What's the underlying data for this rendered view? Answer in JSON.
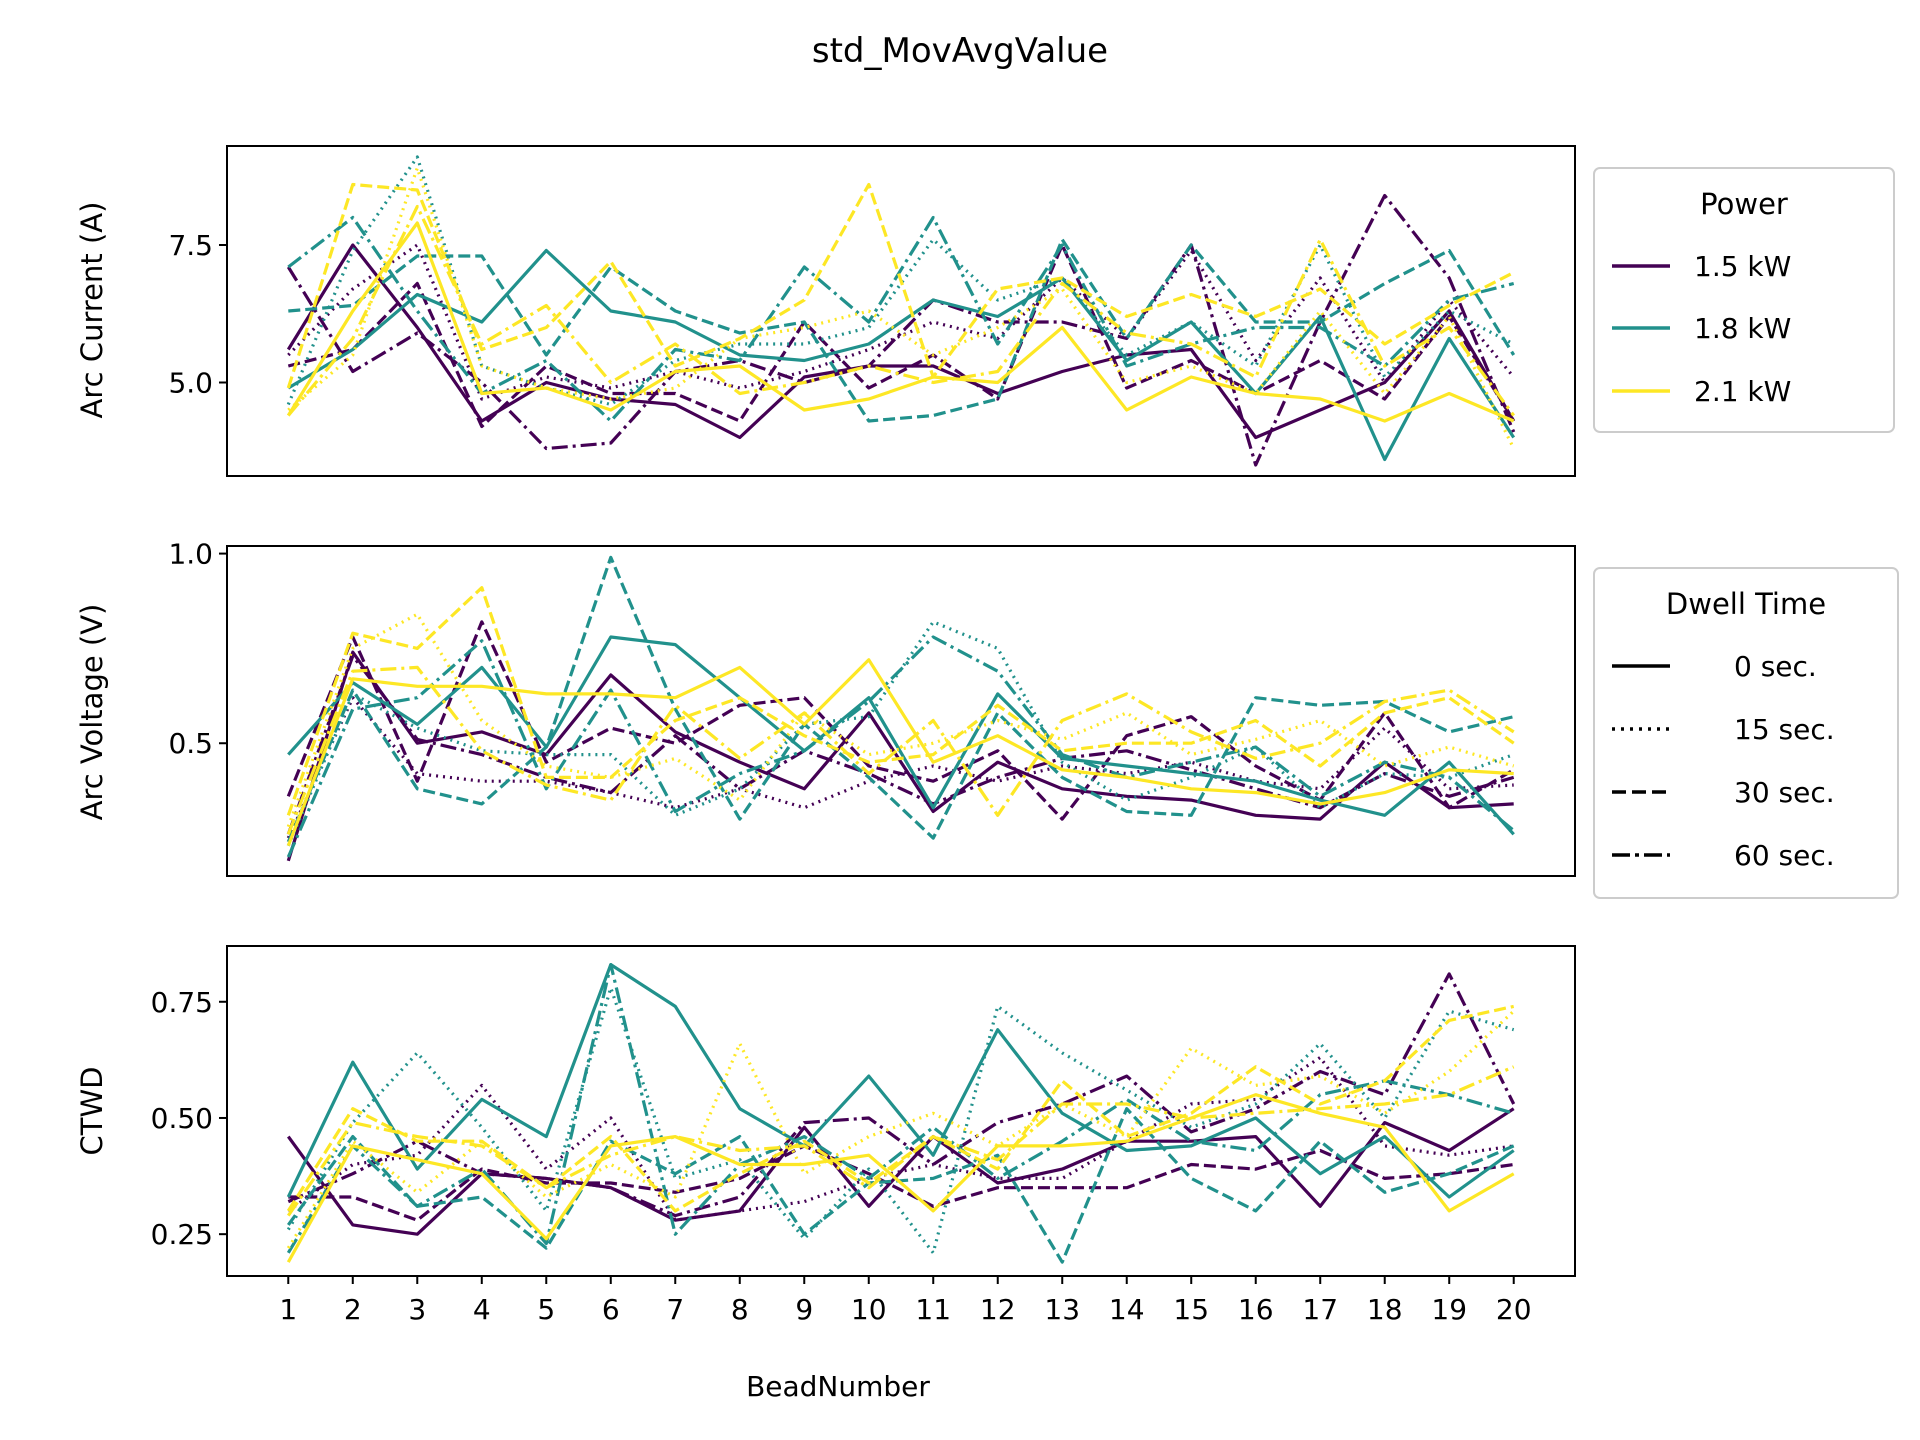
{
  "title": "std_MovAvgValue",
  "xlabel": "BeadNumber",
  "legend_power": {
    "title": "Power",
    "entries": [
      {
        "label": "1.5 kW",
        "color": "#440154"
      },
      {
        "label": "1.8 kW",
        "color": "#21918c"
      },
      {
        "label": "2.1 kW",
        "color": "#fde725"
      }
    ]
  },
  "legend_dwell": {
    "title": "Dwell Time",
    "entries": [
      {
        "label": "0 sec.",
        "style": "solid"
      },
      {
        "label": "15 sec.",
        "style": "dotted"
      },
      {
        "label": "30 sec.",
        "style": "dashed"
      },
      {
        "label": "60 sec.",
        "style": "dashdot"
      }
    ]
  },
  "chart_data": [
    {
      "type": "line",
      "ylabel": "Arc Current (A)",
      "yticks": [
        5.0,
        7.5
      ],
      "ytick_labels": [
        "5.0",
        "7.5"
      ],
      "ylim": [
        3.3,
        9.3
      ],
      "x": [
        1,
        2,
        3,
        4,
        5,
        6,
        7,
        8,
        9,
        10,
        11,
        12,
        13,
        14,
        15,
        16,
        17,
        18,
        19,
        20
      ],
      "series": [
        {
          "power": "1.5 kW",
          "dwell": "0 sec.",
          "values": [
            5.6,
            7.5,
            6.0,
            4.3,
            5.0,
            4.7,
            4.6,
            4.0,
            5.1,
            5.3,
            5.3,
            4.8,
            5.2,
            5.5,
            5.6,
            4.0,
            4.5,
            5.0,
            6.3,
            4.3
          ]
        },
        {
          "power": "1.5 kW",
          "dwell": "15 sec.",
          "values": [
            5.5,
            6.7,
            7.5,
            4.7,
            5.1,
            4.9,
            5.2,
            4.9,
            5.2,
            5.6,
            6.1,
            5.8,
            6.9,
            5.8,
            7.4,
            5.4,
            6.9,
            5.0,
            6.5,
            5.1
          ]
        },
        {
          "power": "1.5 kW",
          "dwell": "30 sec.",
          "values": [
            5.3,
            5.6,
            6.8,
            4.2,
            5.3,
            4.8,
            4.8,
            4.3,
            6.1,
            4.9,
            5.5,
            4.7,
            7.5,
            4.9,
            5.4,
            4.8,
            5.4,
            4.7,
            6.2,
            4.3
          ]
        },
        {
          "power": "1.5 kW",
          "dwell": "60 sec.",
          "values": [
            7.1,
            5.2,
            5.9,
            5.0,
            3.8,
            3.9,
            5.2,
            5.4,
            5.0,
            5.3,
            6.5,
            6.1,
            6.1,
            5.8,
            7.5,
            3.5,
            6.1,
            8.4,
            6.9,
            4.1
          ]
        },
        {
          "power": "1.8 kW",
          "dwell": "0 sec.",
          "values": [
            4.9,
            5.6,
            6.6,
            6.1,
            7.4,
            6.3,
            6.1,
            5.5,
            5.4,
            5.7,
            6.5,
            6.2,
            6.9,
            5.4,
            6.1,
            4.8,
            6.2,
            3.6,
            5.8,
            4.0
          ]
        },
        {
          "power": "1.8 kW",
          "dwell": "15 sec.",
          "values": [
            4.6,
            7.4,
            9.1,
            5.3,
            4.9,
            4.6,
            5.4,
            5.7,
            5.7,
            6.0,
            7.6,
            6.5,
            6.9,
            5.5,
            6.1,
            5.3,
            7.5,
            5.1,
            6.3,
            5.7
          ]
        },
        {
          "power": "1.8 kW",
          "dwell": "30 sec.",
          "values": [
            6.3,
            6.4,
            7.3,
            7.3,
            5.5,
            7.1,
            6.3,
            5.9,
            6.1,
            4.3,
            4.4,
            4.7,
            7.6,
            5.8,
            7.5,
            6.1,
            6.1,
            6.8,
            7.4,
            5.5
          ]
        },
        {
          "power": "1.8 kW",
          "dwell": "60 sec.",
          "values": [
            7.1,
            8.0,
            6.3,
            4.8,
            5.4,
            4.3,
            5.6,
            5.4,
            7.1,
            6.1,
            8.0,
            5.7,
            7.5,
            5.3,
            5.7,
            6.0,
            6.0,
            5.3,
            6.5,
            6.8
          ]
        },
        {
          "power": "2.1 kW",
          "dwell": "0 sec.",
          "values": [
            4.4,
            6.3,
            7.9,
            4.8,
            4.9,
            4.5,
            5.2,
            5.3,
            4.5,
            4.7,
            5.1,
            5.0,
            6.0,
            4.5,
            5.1,
            4.8,
            4.7,
            4.3,
            4.8,
            4.3
          ]
        },
        {
          "power": "2.1 kW",
          "dwell": "15 sec.",
          "values": [
            4.5,
            5.5,
            8.9,
            5.3,
            4.9,
            4.7,
            4.9,
            5.8,
            6.0,
            6.3,
            5.5,
            6.0,
            6.7,
            5.0,
            5.3,
            4.8,
            6.3,
            4.8,
            6.2,
            3.8
          ]
        },
        {
          "power": "2.1 kW",
          "dwell": "30 sec.",
          "values": [
            4.9,
            8.6,
            8.5,
            5.6,
            6.0,
            7.2,
            5.3,
            5.8,
            6.5,
            8.6,
            5.1,
            6.7,
            6.9,
            6.2,
            6.6,
            6.2,
            6.7,
            5.7,
            6.4,
            7.0
          ]
        },
        {
          "power": "2.1 kW",
          "dwell": "60 sec.",
          "values": [
            4.4,
            5.8,
            8.2,
            5.7,
            6.4,
            5.0,
            5.7,
            4.8,
            5.0,
            5.3,
            5.0,
            5.2,
            6.8,
            5.9,
            5.7,
            5.1,
            7.6,
            5.3,
            6.0,
            4.4
          ]
        }
      ]
    },
    {
      "type": "line",
      "ylabel": "Arc Voltage (V)",
      "yticks": [
        0.5,
        1.0
      ],
      "ytick_labels": [
        "0.5",
        "1.0"
      ],
      "ylim": [
        0.15,
        1.02
      ],
      "x": [
        1,
        2,
        3,
        4,
        5,
        6,
        7,
        8,
        9,
        10,
        11,
        12,
        13,
        14,
        15,
        16,
        17,
        18,
        19,
        20
      ],
      "series": [
        {
          "power": "1.5 kW",
          "dwell": "0 sec.",
          "values": [
            0.19,
            0.74,
            0.5,
            0.53,
            0.47,
            0.68,
            0.53,
            0.45,
            0.38,
            0.58,
            0.32,
            0.45,
            0.38,
            0.36,
            0.35,
            0.31,
            0.3,
            0.45,
            0.33,
            0.34
          ]
        },
        {
          "power": "1.5 kW",
          "dwell": "15 sec.",
          "values": [
            0.25,
            0.62,
            0.42,
            0.4,
            0.4,
            0.37,
            0.33,
            0.38,
            0.33,
            0.4,
            0.44,
            0.4,
            0.44,
            0.42,
            0.45,
            0.4,
            0.38,
            0.54,
            0.38,
            0.39
          ]
        },
        {
          "power": "1.5 kW",
          "dwell": "30 sec.",
          "values": [
            0.36,
            0.78,
            0.4,
            0.82,
            0.45,
            0.54,
            0.5,
            0.6,
            0.62,
            0.44,
            0.4,
            0.48,
            0.3,
            0.52,
            0.57,
            0.44,
            0.35,
            0.58,
            0.33,
            0.43
          ]
        },
        {
          "power": "1.5 kW",
          "dwell": "60 sec.",
          "values": [
            0.26,
            0.73,
            0.51,
            0.47,
            0.41,
            0.37,
            0.52,
            0.38,
            0.48,
            0.42,
            0.34,
            0.41,
            0.46,
            0.48,
            0.43,
            0.38,
            0.33,
            0.42,
            0.36,
            0.41
          ]
        },
        {
          "power": "1.8 kW",
          "dwell": "0 sec.",
          "values": [
            0.47,
            0.66,
            0.55,
            0.7,
            0.49,
            0.78,
            0.76,
            0.62,
            0.48,
            0.62,
            0.33,
            0.63,
            0.46,
            0.44,
            0.42,
            0.4,
            0.35,
            0.31,
            0.45,
            0.26
          ]
        },
        {
          "power": "1.8 kW",
          "dwell": "15 sec.",
          "values": [
            0.23,
            0.63,
            0.54,
            0.48,
            0.47,
            0.47,
            0.31,
            0.38,
            0.55,
            0.57,
            0.82,
            0.75,
            0.45,
            0.35,
            0.41,
            0.49,
            0.33,
            0.42,
            0.41,
            0.47
          ]
        },
        {
          "power": "1.8 kW",
          "dwell": "30 sec.",
          "values": [
            0.24,
            0.64,
            0.38,
            0.34,
            0.49,
            0.99,
            0.59,
            0.3,
            0.55,
            0.41,
            0.25,
            0.58,
            0.41,
            0.32,
            0.31,
            0.62,
            0.6,
            0.61,
            0.53,
            0.57
          ]
        },
        {
          "power": "1.8 kW",
          "dwell": "60 sec.",
          "values": [
            0.2,
            0.59,
            0.62,
            0.77,
            0.38,
            0.64,
            0.32,
            0.42,
            0.48,
            0.61,
            0.78,
            0.69,
            0.47,
            0.41,
            0.45,
            0.49,
            0.36,
            0.45,
            0.41,
            0.27
          ]
        },
        {
          "power": "2.1 kW",
          "dwell": "0 sec.",
          "values": [
            0.23,
            0.67,
            0.65,
            0.65,
            0.63,
            0.63,
            0.62,
            0.7,
            0.55,
            0.72,
            0.45,
            0.52,
            0.43,
            0.41,
            0.38,
            0.37,
            0.34,
            0.37,
            0.43,
            0.42
          ]
        },
        {
          "power": "2.1 kW",
          "dwell": "15 sec.",
          "values": [
            0.28,
            0.75,
            0.84,
            0.56,
            0.44,
            0.41,
            0.46,
            0.35,
            0.58,
            0.47,
            0.5,
            0.56,
            0.51,
            0.58,
            0.47,
            0.51,
            0.56,
            0.44,
            0.49,
            0.44
          ]
        },
        {
          "power": "2.1 kW",
          "dwell": "30 sec.",
          "values": [
            0.31,
            0.79,
            0.75,
            0.91,
            0.41,
            0.41,
            0.56,
            0.62,
            0.52,
            0.45,
            0.47,
            0.6,
            0.48,
            0.5,
            0.5,
            0.56,
            0.44,
            0.58,
            0.62,
            0.5
          ]
        },
        {
          "power": "2.1 kW",
          "dwell": "60 sec.",
          "values": [
            0.26,
            0.69,
            0.7,
            0.48,
            0.39,
            0.35,
            0.6,
            0.46,
            0.58,
            0.42,
            0.56,
            0.31,
            0.56,
            0.63,
            0.53,
            0.46,
            0.5,
            0.61,
            0.64,
            0.53
          ]
        }
      ]
    },
    {
      "type": "line",
      "ylabel": "CTWD",
      "yticks": [
        0.25,
        0.5,
        0.75
      ],
      "ytick_labels": [
        "0.25",
        "0.50",
        "0.75"
      ],
      "ylim": [
        0.16,
        0.87
      ],
      "x": [
        1,
        2,
        3,
        4,
        5,
        6,
        7,
        8,
        9,
        10,
        11,
        12,
        13,
        14,
        15,
        16,
        17,
        18,
        19,
        20
      ],
      "series": [
        {
          "power": "1.5 kW",
          "dwell": "0 sec.",
          "values": [
            0.46,
            0.27,
            0.25,
            0.38,
            0.37,
            0.35,
            0.28,
            0.3,
            0.48,
            0.31,
            0.46,
            0.36,
            0.39,
            0.45,
            0.45,
            0.46,
            0.31,
            0.49,
            0.43,
            0.52
          ]
        },
        {
          "power": "1.5 kW",
          "dwell": "15 sec.",
          "values": [
            0.3,
            0.4,
            0.42,
            0.57,
            0.39,
            0.5,
            0.28,
            0.3,
            0.32,
            0.37,
            0.4,
            0.37,
            0.37,
            0.45,
            0.53,
            0.54,
            0.63,
            0.44,
            0.42,
            0.44
          ]
        },
        {
          "power": "1.5 kW",
          "dwell": "30 sec.",
          "values": [
            0.33,
            0.33,
            0.28,
            0.39,
            0.36,
            0.36,
            0.34,
            0.37,
            0.44,
            0.38,
            0.31,
            0.35,
            0.35,
            0.35,
            0.4,
            0.39,
            0.43,
            0.37,
            0.38,
            0.4
          ]
        },
        {
          "power": "1.5 kW",
          "dwell": "60 sec.",
          "values": [
            0.32,
            0.38,
            0.45,
            0.38,
            0.37,
            0.35,
            0.29,
            0.33,
            0.49,
            0.5,
            0.4,
            0.49,
            0.53,
            0.59,
            0.47,
            0.52,
            0.6,
            0.55,
            0.81,
            0.53
          ]
        },
        {
          "power": "1.8 kW",
          "dwell": "0 sec.",
          "values": [
            0.33,
            0.62,
            0.39,
            0.54,
            0.46,
            0.83,
            0.74,
            0.52,
            0.44,
            0.59,
            0.42,
            0.69,
            0.51,
            0.43,
            0.44,
            0.5,
            0.38,
            0.46,
            0.33,
            0.43
          ]
        },
        {
          "power": "1.8 kW",
          "dwell": "15 sec.",
          "values": [
            0.26,
            0.49,
            0.64,
            0.48,
            0.3,
            0.78,
            0.37,
            0.41,
            0.24,
            0.39,
            0.21,
            0.74,
            0.64,
            0.56,
            0.48,
            0.53,
            0.66,
            0.5,
            0.73,
            0.69
          ]
        },
        {
          "power": "1.8 kW",
          "dwell": "30 sec.",
          "values": [
            0.27,
            0.46,
            0.31,
            0.33,
            0.22,
            0.45,
            0.38,
            0.46,
            0.25,
            0.36,
            0.37,
            0.42,
            0.19,
            0.52,
            0.37,
            0.3,
            0.45,
            0.34,
            0.38,
            0.44
          ]
        },
        {
          "power": "1.8 kW",
          "dwell": "60 sec.",
          "values": [
            0.21,
            0.44,
            0.31,
            0.39,
            0.23,
            0.83,
            0.25,
            0.4,
            0.46,
            0.37,
            0.48,
            0.37,
            0.45,
            0.54,
            0.45,
            0.43,
            0.55,
            0.58,
            0.55,
            0.51
          ]
        },
        {
          "power": "2.1 kW",
          "dwell": "0 sec.",
          "values": [
            0.19,
            0.44,
            0.41,
            0.38,
            0.24,
            0.44,
            0.46,
            0.4,
            0.4,
            0.42,
            0.3,
            0.44,
            0.44,
            0.45,
            0.5,
            0.55,
            0.51,
            0.48,
            0.3,
            0.38
          ]
        },
        {
          "power": "2.1 kW",
          "dwell": "15 sec.",
          "values": [
            0.22,
            0.45,
            0.34,
            0.45,
            0.33,
            0.4,
            0.33,
            0.66,
            0.38,
            0.46,
            0.51,
            0.44,
            0.53,
            0.46,
            0.65,
            0.57,
            0.59,
            0.51,
            0.6,
            0.73
          ]
        },
        {
          "power": "2.1 kW",
          "dwell": "30 sec.",
          "values": [
            0.3,
            0.52,
            0.45,
            0.45,
            0.35,
            0.46,
            0.3,
            0.38,
            0.45,
            0.36,
            0.46,
            0.39,
            0.58,
            0.46,
            0.51,
            0.61,
            0.53,
            0.58,
            0.71,
            0.74
          ]
        },
        {
          "power": "2.1 kW",
          "dwell": "60 sec.",
          "values": [
            0.29,
            0.49,
            0.46,
            0.44,
            0.35,
            0.42,
            0.46,
            0.43,
            0.44,
            0.35,
            0.46,
            0.41,
            0.53,
            0.53,
            0.5,
            0.51,
            0.52,
            0.53,
            0.55,
            0.61
          ]
        }
      ]
    }
  ]
}
